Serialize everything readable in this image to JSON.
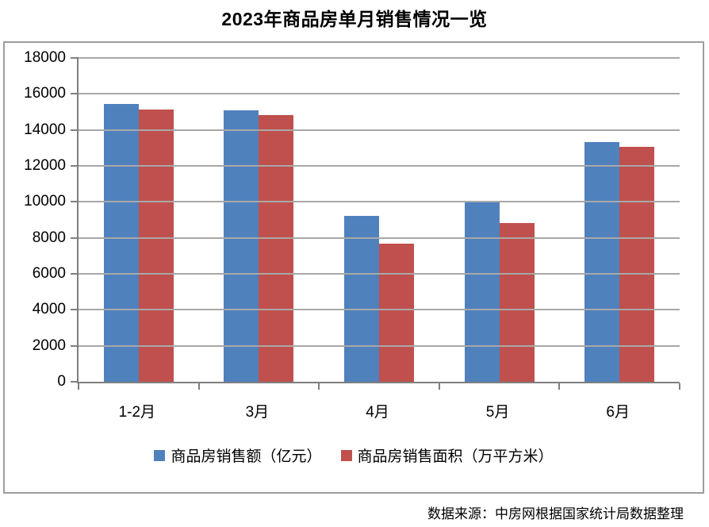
{
  "title": "2023年商品房单月销售情况一览",
  "chart_data": {
    "type": "bar",
    "title": "2023年商品房单月销售情况一览",
    "categories": [
      "1-2月",
      "3月",
      "4月",
      "5月",
      "6月"
    ],
    "series": [
      {
        "name": "商品房销售额（亿元）",
        "color": "#4F81BD",
        "values": [
          15449,
          15096,
          9205,
          10037,
          13305
        ]
      },
      {
        "name": "商品房销售面积（万平方米）",
        "color": "#C0504D",
        "values": [
          15133,
          14813,
          7690,
          8804,
          13075
        ]
      }
    ],
    "xlabel": "",
    "ylabel": "",
    "ylim": [
      0,
      18000
    ],
    "y_ticks": [
      0,
      2000,
      4000,
      6000,
      8000,
      10000,
      12000,
      14000,
      16000,
      18000
    ],
    "grid": true,
    "legend_position": "bottom"
  },
  "footer": {
    "source_text": "数据来源：中房网根据国家统计局数据整理"
  },
  "colors": {
    "series_blue": "#4F81BD",
    "series_red": "#C0504D",
    "gridline": "#a8a8a8",
    "axis": "#7f7f7f",
    "frame_border": "#9d9d9d",
    "text": "#000000",
    "background": "#ffffff"
  }
}
